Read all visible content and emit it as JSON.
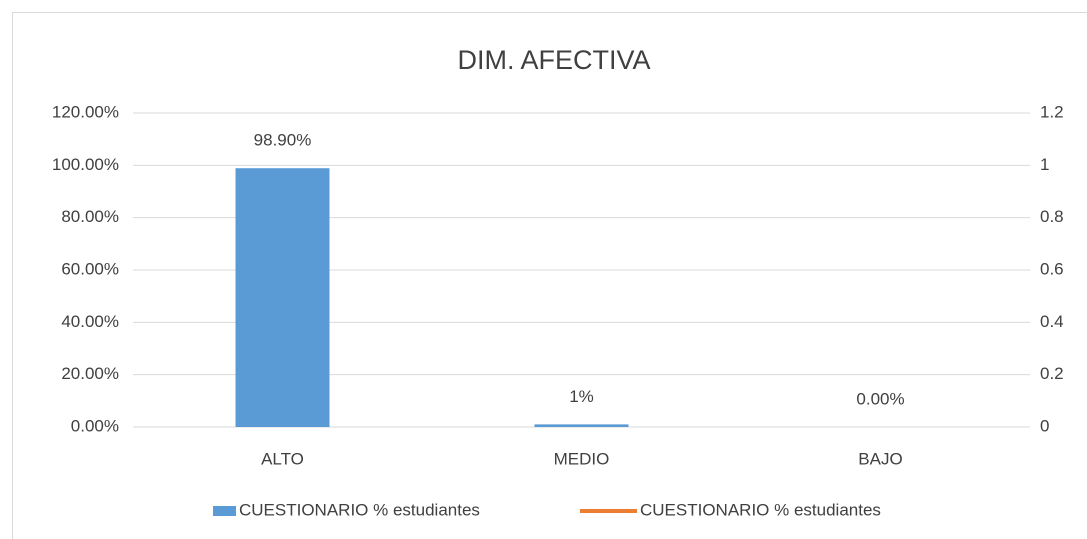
{
  "chart_data": {
    "type": "bar",
    "title": "DIM. AFECTIVA",
    "categories": [
      "ALTO",
      "MEDIO",
      "BAJO"
    ],
    "series": [
      {
        "name": "CUESTIONARIO % estudiantes",
        "type": "bar",
        "color": "#5b9bd5",
        "values": [
          98.9,
          1,
          0
        ],
        "value_labels": [
          "98.90%",
          "1%",
          "0.00%"
        ]
      },
      {
        "name": "CUESTIONARIO % estudiantes",
        "type": "line",
        "axis": "y2",
        "color": "#ed7d31",
        "values": [
          null,
          null,
          null
        ]
      }
    ],
    "ylim": [
      0,
      120
    ],
    "yticks": [
      {
        "value": 0,
        "label": "0.00%"
      },
      {
        "value": 20,
        "label": "20.00%"
      },
      {
        "value": 40,
        "label": "40.00%"
      },
      {
        "value": 60,
        "label": "60.00%"
      },
      {
        "value": 80,
        "label": "80.00%"
      },
      {
        "value": 100,
        "label": "100.00%"
      },
      {
        "value": 120,
        "label": "120.00%"
      }
    ],
    "y2lim": [
      0,
      1.2
    ],
    "y2ticks": [
      0,
      0.2,
      0.4,
      0.6,
      0.8,
      1,
      1.2
    ],
    "grid": true,
    "legend": "bottom"
  }
}
